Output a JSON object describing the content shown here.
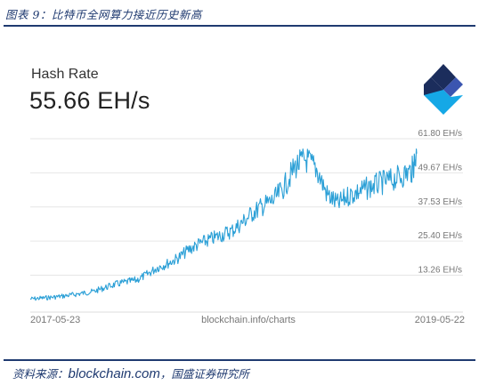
{
  "figure": {
    "title": "图表 9：比特币全网算力接近历史新高",
    "source_prefix": "资料来源：",
    "source_link": "blockchain.com",
    "source_suffix": "，国盛证券研究所"
  },
  "card": {
    "metric_label": "Hash Rate",
    "metric_value": "55.66 EH/s",
    "logo": "blockchain-logo-icon",
    "attribution": "blockchain.info/charts"
  },
  "colors": {
    "line": "#2a9fd6",
    "grid": "#e6e6e6",
    "tick_text": "#777777",
    "frame": "#1f3a70",
    "logo_dark": "#1b2d5c",
    "logo_mid": "#3b55b0",
    "logo_light": "#15a8e6"
  },
  "chart_data": {
    "type": "line",
    "title": "Hash Rate",
    "ylabel": "",
    "xlabel": "",
    "x_tick_labels": [
      "2017-05-23",
      "2019-05-22"
    ],
    "x_range": [
      "2017-05-23",
      "2019-05-22"
    ],
    "y_unit": "EH/s",
    "yticks": [
      13.26,
      25.4,
      37.53,
      49.67,
      61.8
    ],
    "ytick_labels": [
      "13.26 EH/s",
      "25.40 EH/s",
      "37.53 EH/s",
      "49.67 EH/s",
      "61.80 EH/s"
    ],
    "ylim": [
      1.1,
      61.8
    ],
    "grid": true,
    "series": [
      {
        "x": [
          "2017-05-23",
          "2017-06-12",
          "2017-07-02",
          "2017-07-22",
          "2017-08-11",
          "2017-08-31",
          "2017-09-20",
          "2017-10-10",
          "2017-10-30",
          "2017-11-19",
          "2017-12-09",
          "2017-12-29",
          "2018-01-18",
          "2018-02-07",
          "2018-02-27",
          "2018-03-19",
          "2018-04-08",
          "2018-04-28",
          "2018-05-18",
          "2018-06-07",
          "2018-06-27",
          "2018-07-17",
          "2018-08-06",
          "2018-08-26",
          "2018-09-15",
          "2018-10-05",
          "2018-10-25",
          "2018-11-14",
          "2018-12-04",
          "2018-12-24",
          "2019-01-13",
          "2019-02-02",
          "2019-02-22",
          "2019-03-14",
          "2019-04-03",
          "2019-04-23",
          "2019-05-13",
          "2019-05-22"
        ],
        "values": [
          4.8,
          5.1,
          5.4,
          5.8,
          6.3,
          6.9,
          7.5,
          8.8,
          10.0,
          10.8,
          11.5,
          13.5,
          16.0,
          17.5,
          19.5,
          22.5,
          24.5,
          26.0,
          27.5,
          29.0,
          32.0,
          35.5,
          38.0,
          40.0,
          45.0,
          52.0,
          54.5,
          51.0,
          42.0,
          38.5,
          41.5,
          43.0,
          44.5,
          46.0,
          47.0,
          48.5,
          50.5,
          56.5
        ]
      }
    ]
  }
}
